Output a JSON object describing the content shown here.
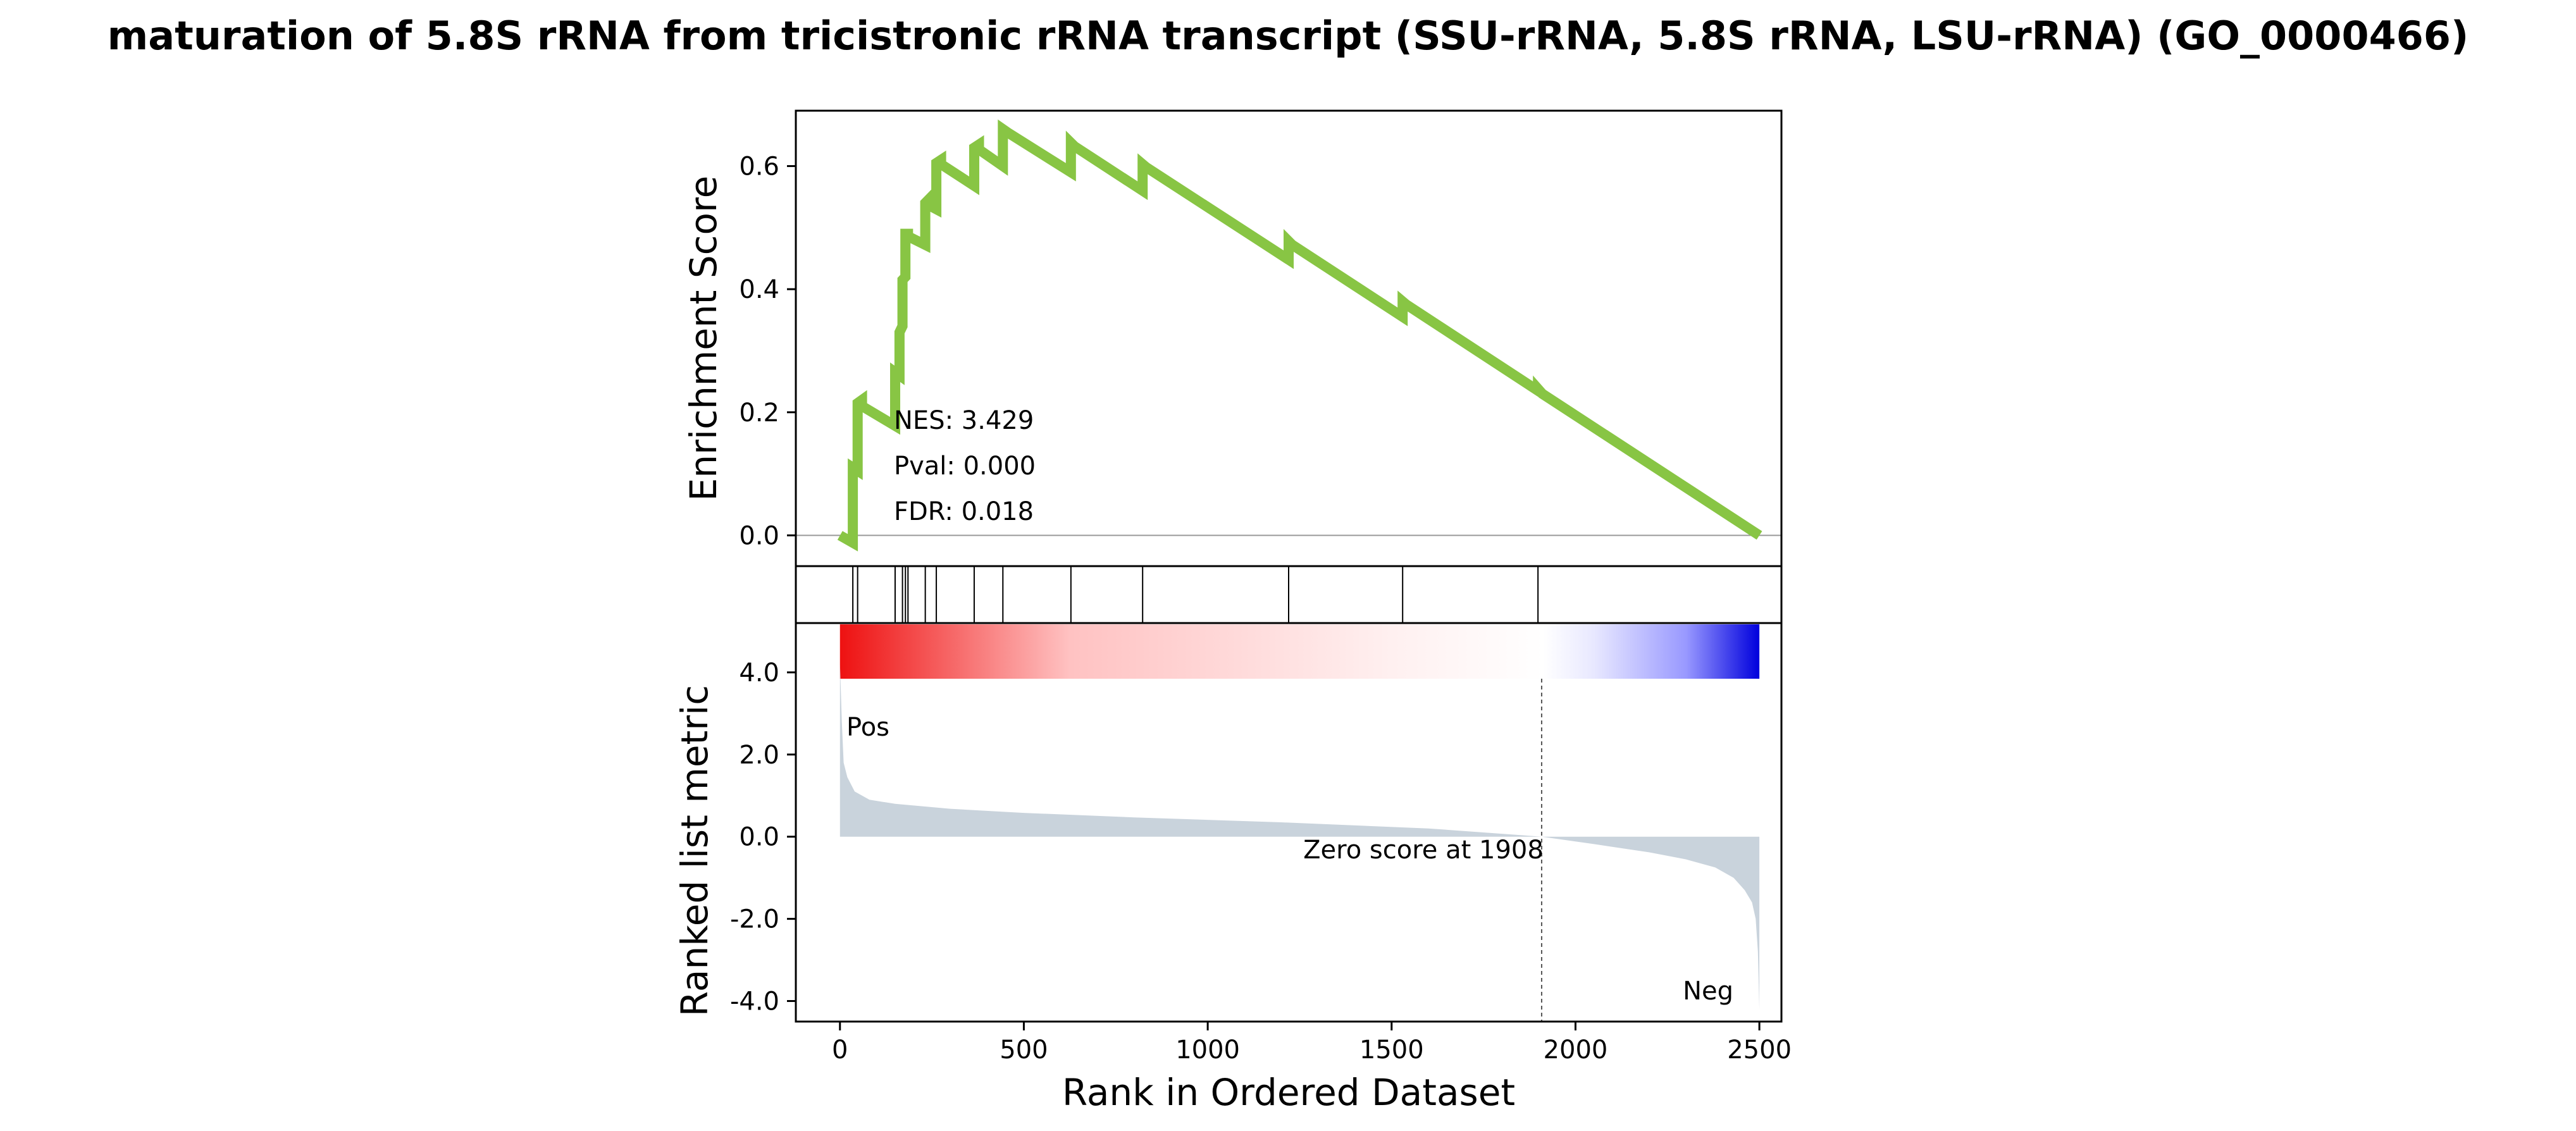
{
  "chart_data": {
    "type": "line",
    "title": "maturation of 5.8S rRNA from tricistronic rRNA transcript (SSU-rRNA, 5.8S rRNA, LSU-rRNA) (GO_0000466)",
    "xlabel": "Rank in Ordered Dataset",
    "xlim": [
      -120,
      2560
    ],
    "xticks": [
      0,
      500,
      1000,
      1500,
      2000,
      2500
    ],
    "xtick_labels": [
      "0",
      "500",
      "1000",
      "1500",
      "2000",
      "2500"
    ],
    "es_panel": {
      "ylabel": "Enrichment Score",
      "ylim": [
        -0.05,
        0.69
      ],
      "yticks": [
        0.0,
        0.2,
        0.4,
        0.6
      ],
      "ytick_labels": [
        "0.0",
        "0.2",
        "0.4",
        "0.6"
      ],
      "line_color": "#88c544",
      "series": [
        {
          "x": [
            0,
            35,
            35,
            48,
            48,
            60,
            60,
            150,
            150,
            162,
            162,
            170,
            170,
            178,
            178,
            185,
            185,
            232,
            232,
            240,
            240,
            262,
            262,
            275,
            275,
            365,
            365,
            378,
            378,
            443,
            443,
            455,
            455,
            628,
            628,
            638,
            638,
            823,
            823,
            833,
            833,
            1220,
            1220,
            1230,
            1230,
            1530,
            1530,
            1540,
            1540,
            1898,
            1898,
            1910,
            1910,
            2500
          ],
          "y": [
            0.0,
            -0.012,
            0.11,
            0.105,
            0.215,
            0.22,
            0.21,
            0.178,
            0.265,
            0.26,
            0.33,
            0.34,
            0.415,
            0.42,
            0.49,
            0.49,
            0.486,
            0.472,
            0.54,
            0.545,
            0.537,
            0.53,
            0.605,
            0.61,
            0.603,
            0.568,
            0.63,
            0.635,
            0.627,
            0.6,
            0.66,
            0.655,
            0.655,
            0.59,
            0.638,
            0.632,
            0.632,
            0.56,
            0.603,
            0.598,
            0.598,
            0.448,
            0.478,
            0.472,
            0.472,
            0.355,
            0.38,
            0.375,
            0.375,
            0.235,
            0.238,
            0.23,
            0.23,
            0.0
          ]
        }
      ],
      "annotations": [
        "NES: 3.429",
        "Pval: 0.000",
        "FDR: 0.018"
      ]
    },
    "hits_panel": {
      "hit_ranks": [
        35,
        48,
        150,
        170,
        178,
        185,
        232,
        262,
        365,
        443,
        628,
        823,
        1220,
        1530,
        1898
      ]
    },
    "rank_panel": {
      "ylabel": "Ranked list metric",
      "ylim": [
        -4.5,
        5.2
      ],
      "yticks": [
        4.0,
        2.0,
        0.0,
        -2.0,
        -4.0
      ],
      "ytick_labels": [
        "4.0",
        "2.0",
        "0.0",
        "-2.0",
        "-4.0"
      ],
      "fill_color": "#c9d3dc",
      "profile_x": [
        0,
        5,
        10,
        20,
        40,
        80,
        150,
        300,
        500,
        800,
        1200,
        1600,
        1908,
        2050,
        2200,
        2300,
        2380,
        2430,
        2460,
        2480,
        2490,
        2496,
        2500
      ],
      "profile_y": [
        4.2,
        2.8,
        1.8,
        1.45,
        1.1,
        0.9,
        0.8,
        0.68,
        0.58,
        0.47,
        0.35,
        0.2,
        0.0,
        -0.18,
        -0.38,
        -0.55,
        -0.75,
        -1.0,
        -1.3,
        -1.6,
        -2.0,
        -2.8,
        -4.2
      ],
      "zero_cross_rank": 1908,
      "zero_label": "Zero score at 1908",
      "pos_label": "Pos",
      "neg_label": "Neg",
      "pos_color": "#dd0000",
      "neg_color": "#0000cc",
      "gradient_colors": [
        "#ee1111",
        "#ffc2c2",
        "#fff0f0",
        "#ffffff",
        "#e8e8ff",
        "#9999ff",
        "#0000dd"
      ]
    }
  }
}
